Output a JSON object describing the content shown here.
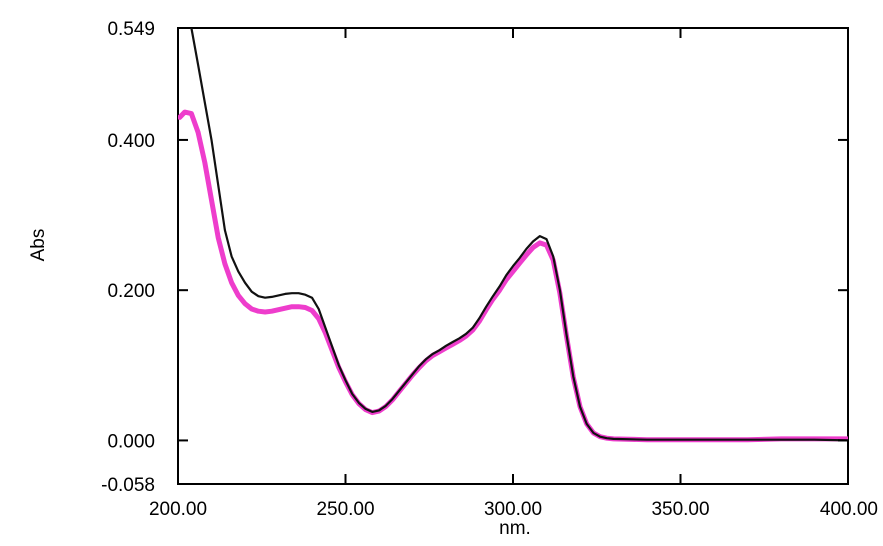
{
  "chart_data": {
    "type": "line",
    "title": "",
    "xlabel": "nm.",
    "ylabel": "Abs",
    "xlim": [
      200,
      400
    ],
    "ylim": [
      -0.058,
      0.549
    ],
    "x_ticks": [
      200,
      250,
      300,
      350,
      400
    ],
    "x_tick_labels": [
      "200.00",
      "250.00",
      "300.00",
      "350.00",
      "400.00"
    ],
    "y_ticks": [
      -0.058,
      0.0,
      0.2,
      0.4,
      0.549
    ],
    "y_tick_labels": [
      "-0.058",
      "0.000",
      "0.200",
      "0.400",
      "0.549"
    ],
    "grid": false,
    "legend": "none",
    "series": [
      {
        "color": "#111111",
        "points": [
          [
            204,
            0.549
          ],
          [
            206,
            0.5
          ],
          [
            208,
            0.45
          ],
          [
            210,
            0.4
          ],
          [
            212,
            0.34
          ],
          [
            214,
            0.28
          ],
          [
            216,
            0.245
          ],
          [
            218,
            0.225
          ],
          [
            220,
            0.21
          ],
          [
            222,
            0.198
          ],
          [
            224,
            0.192
          ],
          [
            226,
            0.19
          ],
          [
            228,
            0.191
          ],
          [
            230,
            0.193
          ],
          [
            232,
            0.195
          ],
          [
            234,
            0.196
          ],
          [
            236,
            0.196
          ],
          [
            238,
            0.194
          ],
          [
            240,
            0.19
          ],
          [
            242,
            0.175
          ],
          [
            244,
            0.15
          ],
          [
            246,
            0.125
          ],
          [
            248,
            0.1
          ],
          [
            250,
            0.08
          ],
          [
            252,
            0.062
          ],
          [
            254,
            0.05
          ],
          [
            256,
            0.042
          ],
          [
            258,
            0.038
          ],
          [
            260,
            0.04
          ],
          [
            262,
            0.046
          ],
          [
            264,
            0.055
          ],
          [
            266,
            0.066
          ],
          [
            268,
            0.077
          ],
          [
            270,
            0.088
          ],
          [
            272,
            0.099
          ],
          [
            274,
            0.108
          ],
          [
            276,
            0.115
          ],
          [
            278,
            0.12
          ],
          [
            280,
            0.126
          ],
          [
            282,
            0.131
          ],
          [
            284,
            0.136
          ],
          [
            286,
            0.142
          ],
          [
            288,
            0.15
          ],
          [
            290,
            0.163
          ],
          [
            292,
            0.178
          ],
          [
            294,
            0.192
          ],
          [
            296,
            0.205
          ],
          [
            298,
            0.22
          ],
          [
            300,
            0.232
          ],
          [
            302,
            0.243
          ],
          [
            304,
            0.255
          ],
          [
            306,
            0.265
          ],
          [
            308,
            0.272
          ],
          [
            310,
            0.268
          ],
          [
            312,
            0.245
          ],
          [
            314,
            0.2
          ],
          [
            316,
            0.14
          ],
          [
            318,
            0.085
          ],
          [
            320,
            0.045
          ],
          [
            322,
            0.022
          ],
          [
            324,
            0.01
          ],
          [
            326,
            0.005
          ],
          [
            328,
            0.003
          ],
          [
            330,
            0.002
          ],
          [
            340,
            0.001
          ],
          [
            350,
            0.001
          ],
          [
            360,
            0.001
          ],
          [
            370,
            0.001
          ],
          [
            380,
            0.001
          ],
          [
            390,
            0.001
          ],
          [
            400,
            0.0
          ]
        ]
      },
      {
        "color": "#ee3dcc",
        "points": [
          [
            200.5,
            0.43
          ],
          [
            202,
            0.437
          ],
          [
            204,
            0.435
          ],
          [
            206,
            0.41
          ],
          [
            208,
            0.37
          ],
          [
            210,
            0.32
          ],
          [
            212,
            0.27
          ],
          [
            214,
            0.235
          ],
          [
            216,
            0.21
          ],
          [
            218,
            0.193
          ],
          [
            220,
            0.182
          ],
          [
            222,
            0.175
          ],
          [
            224,
            0.172
          ],
          [
            226,
            0.171
          ],
          [
            228,
            0.172
          ],
          [
            230,
            0.174
          ],
          [
            232,
            0.176
          ],
          [
            234,
            0.178
          ],
          [
            236,
            0.178
          ],
          [
            238,
            0.177
          ],
          [
            240,
            0.173
          ],
          [
            242,
            0.162
          ],
          [
            244,
            0.143
          ],
          [
            246,
            0.12
          ],
          [
            248,
            0.097
          ],
          [
            250,
            0.078
          ],
          [
            252,
            0.061
          ],
          [
            254,
            0.049
          ],
          [
            256,
            0.041
          ],
          [
            258,
            0.037
          ],
          [
            260,
            0.039
          ],
          [
            262,
            0.045
          ],
          [
            264,
            0.054
          ],
          [
            266,
            0.065
          ],
          [
            268,
            0.076
          ],
          [
            270,
            0.087
          ],
          [
            272,
            0.097
          ],
          [
            274,
            0.106
          ],
          [
            276,
            0.113
          ],
          [
            278,
            0.118
          ],
          [
            280,
            0.123
          ],
          [
            282,
            0.128
          ],
          [
            284,
            0.133
          ],
          [
            286,
            0.139
          ],
          [
            288,
            0.147
          ],
          [
            290,
            0.159
          ],
          [
            292,
            0.174
          ],
          [
            294,
            0.188
          ],
          [
            296,
            0.2
          ],
          [
            298,
            0.214
          ],
          [
            300,
            0.225
          ],
          [
            302,
            0.236
          ],
          [
            304,
            0.247
          ],
          [
            306,
            0.257
          ],
          [
            308,
            0.263
          ],
          [
            310,
            0.26
          ],
          [
            312,
            0.24
          ],
          [
            314,
            0.196
          ],
          [
            316,
            0.138
          ],
          [
            318,
            0.084
          ],
          [
            320,
            0.045
          ],
          [
            322,
            0.022
          ],
          [
            324,
            0.01
          ],
          [
            326,
            0.005
          ],
          [
            328,
            0.003
          ],
          [
            330,
            0.002
          ],
          [
            340,
            0.001
          ],
          [
            350,
            0.001
          ],
          [
            360,
            0.001
          ],
          [
            370,
            0.001
          ],
          [
            380,
            0.002
          ],
          [
            390,
            0.002
          ],
          [
            400,
            0.002
          ]
        ]
      }
    ]
  }
}
